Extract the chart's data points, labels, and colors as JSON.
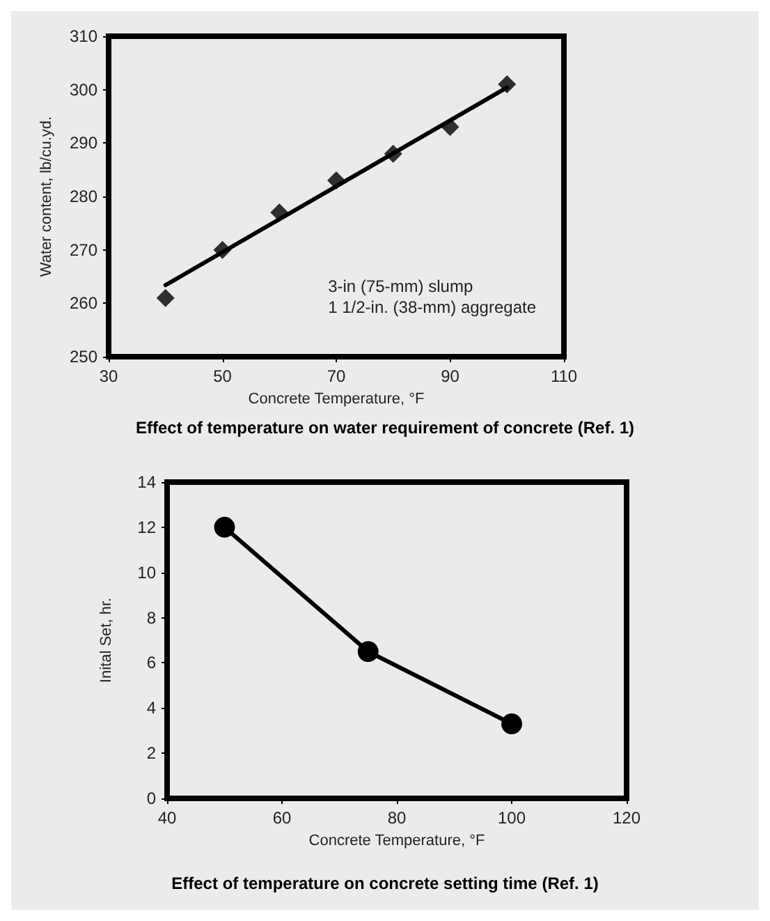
{
  "chart_data": [
    {
      "type": "scatter",
      "title": "Effect of temperature on water requirement of concrete (Ref. 1)",
      "xlabel": "Concrete Temperature, °F",
      "ylabel": "Water content, lb/cu.yd.",
      "x": [
        40,
        50,
        60,
        70,
        80,
        90,
        100
      ],
      "series": [
        {
          "color": "#000000",
          "marker": "diamond",
          "values": [
            261,
            270,
            277,
            283,
            288,
            293,
            301
          ]
        },
        {
          "type": "line",
          "color": "#000000",
          "marker": "none",
          "x": [
            40,
            100
          ],
          "values": [
            263.4,
            300.4
          ]
        }
      ],
      "xlim": [
        30,
        110
      ],
      "xticks": [
        30,
        50,
        70,
        90,
        110
      ],
      "ylim": [
        250,
        310
      ],
      "yticks": [
        250,
        260,
        270,
        280,
        290,
        300,
        310
      ],
      "annotations": [
        "3-in (75-mm) slump",
        "1 1/2-in. (38-mm) aggregate"
      ],
      "grid": false
    },
    {
      "type": "line",
      "title": "Effect of temperature on concrete setting time (Ref. 1)",
      "xlabel": "Concrete Temperature, °F",
      "ylabel": "Inital Set, hr.",
      "x": [
        50,
        75,
        100
      ],
      "series": [
        {
          "color": "#000000",
          "values": [
            12,
            6.5,
            3.3
          ]
        }
      ],
      "marker": "circle",
      "xlim": [
        40,
        120
      ],
      "xticks": [
        40,
        60,
        80,
        100,
        120
      ],
      "ylim": [
        0,
        14
      ],
      "yticks": [
        0,
        2,
        4,
        6,
        8,
        10,
        12,
        14
      ],
      "grid": false
    }
  ]
}
